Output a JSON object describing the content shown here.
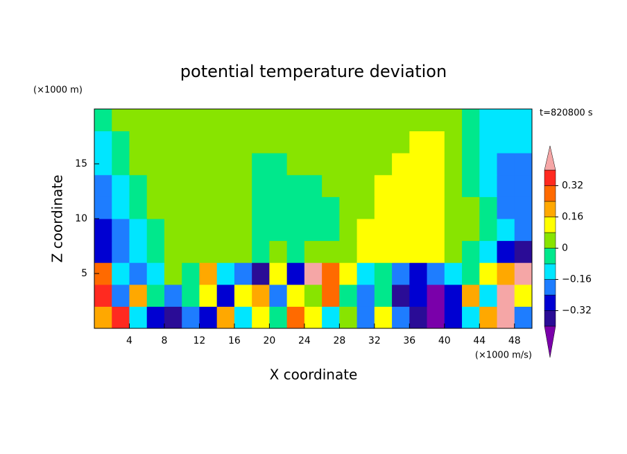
{
  "chart_data": {
    "type": "contour",
    "title": "potential temperature deviation",
    "x_label": "X coordinate",
    "y_label": "Z coordinate",
    "y_unit": "(×1000 m)",
    "x_unit": "(×1000 m/s)",
    "time_label": "t=820800 s",
    "xlim": [
      0,
      50
    ],
    "ylim": [
      0,
      20
    ],
    "xticks": [
      4,
      8,
      12,
      16,
      20,
      24,
      28,
      32,
      36,
      40,
      44,
      48
    ],
    "yticks": [
      5,
      10,
      15
    ],
    "x": [
      1,
      3,
      5,
      7,
      9,
      11,
      13,
      15,
      17,
      19,
      21,
      23,
      25,
      27,
      29,
      31,
      33,
      35,
      37,
      39,
      41,
      43,
      45,
      47,
      49
    ],
    "z": [
      1,
      3,
      5,
      7,
      9,
      11,
      13,
      15,
      17,
      19
    ],
    "values": [
      [
        0.2,
        0.36,
        -0.12,
        -0.28,
        -0.36,
        -0.2,
        -0.28,
        0.2,
        -0.12,
        0.12,
        -0.04,
        0.28,
        0.12,
        -0.12,
        0.04,
        -0.2,
        0.12,
        -0.2,
        -0.36,
        -0.45,
        -0.28,
        -0.12,
        0.2,
        0.44,
        -0.2
      ],
      [
        0.36,
        -0.2,
        0.2,
        -0.04,
        -0.2,
        -0.04,
        0.12,
        -0.28,
        0.12,
        0.2,
        -0.2,
        0.12,
        0.04,
        0.28,
        -0.04,
        -0.2,
        -0.04,
        -0.36,
        -0.28,
        -0.45,
        -0.28,
        0.2,
        -0.12,
        0.44,
        0.12
      ],
      [
        0.28,
        -0.12,
        -0.2,
        -0.12,
        0.04,
        -0.04,
        0.2,
        -0.12,
        -0.2,
        -0.36,
        0.12,
        -0.28,
        0.44,
        0.28,
        0.12,
        -0.12,
        -0.04,
        -0.2,
        -0.28,
        -0.2,
        -0.12,
        -0.04,
        0.12,
        0.2,
        0.44
      ],
      [
        -0.28,
        -0.2,
        -0.12,
        -0.04,
        0.04,
        0.04,
        0.04,
        0.04,
        0.04,
        -0.04,
        0.04,
        -0.04,
        0.04,
        0.04,
        0.04,
        0.12,
        0.12,
        0.12,
        0.12,
        0.12,
        0.04,
        -0.04,
        -0.12,
        -0.28,
        -0.36
      ],
      [
        -0.28,
        -0.2,
        -0.12,
        -0.04,
        0.04,
        0.04,
        0.04,
        0.04,
        0.04,
        -0.04,
        -0.04,
        -0.04,
        -0.04,
        -0.04,
        0.04,
        0.12,
        0.12,
        0.12,
        0.12,
        0.12,
        0.04,
        0.04,
        -0.04,
        -0.12,
        -0.2
      ],
      [
        -0.2,
        -0.12,
        -0.04,
        0.04,
        0.04,
        0.04,
        0.04,
        0.04,
        0.04,
        -0.04,
        -0.04,
        -0.04,
        -0.04,
        -0.04,
        0.04,
        0.04,
        0.12,
        0.12,
        0.12,
        0.12,
        0.04,
        0.04,
        -0.04,
        -0.2,
        -0.2
      ],
      [
        -0.2,
        -0.12,
        -0.04,
        0.04,
        0.04,
        0.04,
        0.04,
        0.04,
        0.04,
        -0.04,
        -0.04,
        -0.04,
        -0.04,
        0.04,
        0.04,
        0.04,
        0.12,
        0.12,
        0.12,
        0.12,
        0.04,
        -0.04,
        -0.12,
        -0.2,
        -0.2
      ],
      [
        -0.12,
        -0.04,
        0.04,
        0.04,
        0.04,
        0.04,
        0.04,
        0.04,
        0.04,
        -0.04,
        -0.04,
        0.04,
        0.04,
        0.04,
        0.04,
        0.04,
        0.04,
        0.12,
        0.12,
        0.12,
        0.04,
        -0.04,
        -0.12,
        -0.2,
        -0.2
      ],
      [
        -0.12,
        -0.04,
        0.04,
        0.04,
        0.04,
        0.04,
        0.04,
        0.04,
        0.04,
        0.04,
        0.04,
        0.04,
        0.04,
        0.04,
        0.04,
        0.04,
        0.04,
        0.04,
        0.12,
        0.12,
        0.04,
        -0.04,
        -0.12,
        -0.12,
        -0.12
      ],
      [
        -0.04,
        0.04,
        0.04,
        0.04,
        0.04,
        0.04,
        0.04,
        0.04,
        0.04,
        0.04,
        0.04,
        0.04,
        0.04,
        0.04,
        0.04,
        0.04,
        0.04,
        0.04,
        0.04,
        0.04,
        0.04,
        -0.04,
        -0.12,
        -0.12,
        -0.12
      ]
    ],
    "levels": [
      -0.4,
      -0.32,
      -0.24,
      -0.16,
      -0.08,
      0,
      0.08,
      0.16,
      0.24,
      0.32,
      0.4
    ],
    "colors": [
      "#7a00aa",
      "#2a0c96",
      "#0000d2",
      "#1e7dff",
      "#00e6ff",
      "#00e88c",
      "#88e400",
      "#ffff00",
      "#ffa800",
      "#ff6a00",
      "#ff2a20",
      "#f5a6a6"
    ],
    "cbar_ticks": [
      {
        "value": -0.32,
        "label": "−0.32"
      },
      {
        "value": -0.16,
        "label": "−0.16"
      },
      0,
      0.16,
      0.32
    ]
  }
}
